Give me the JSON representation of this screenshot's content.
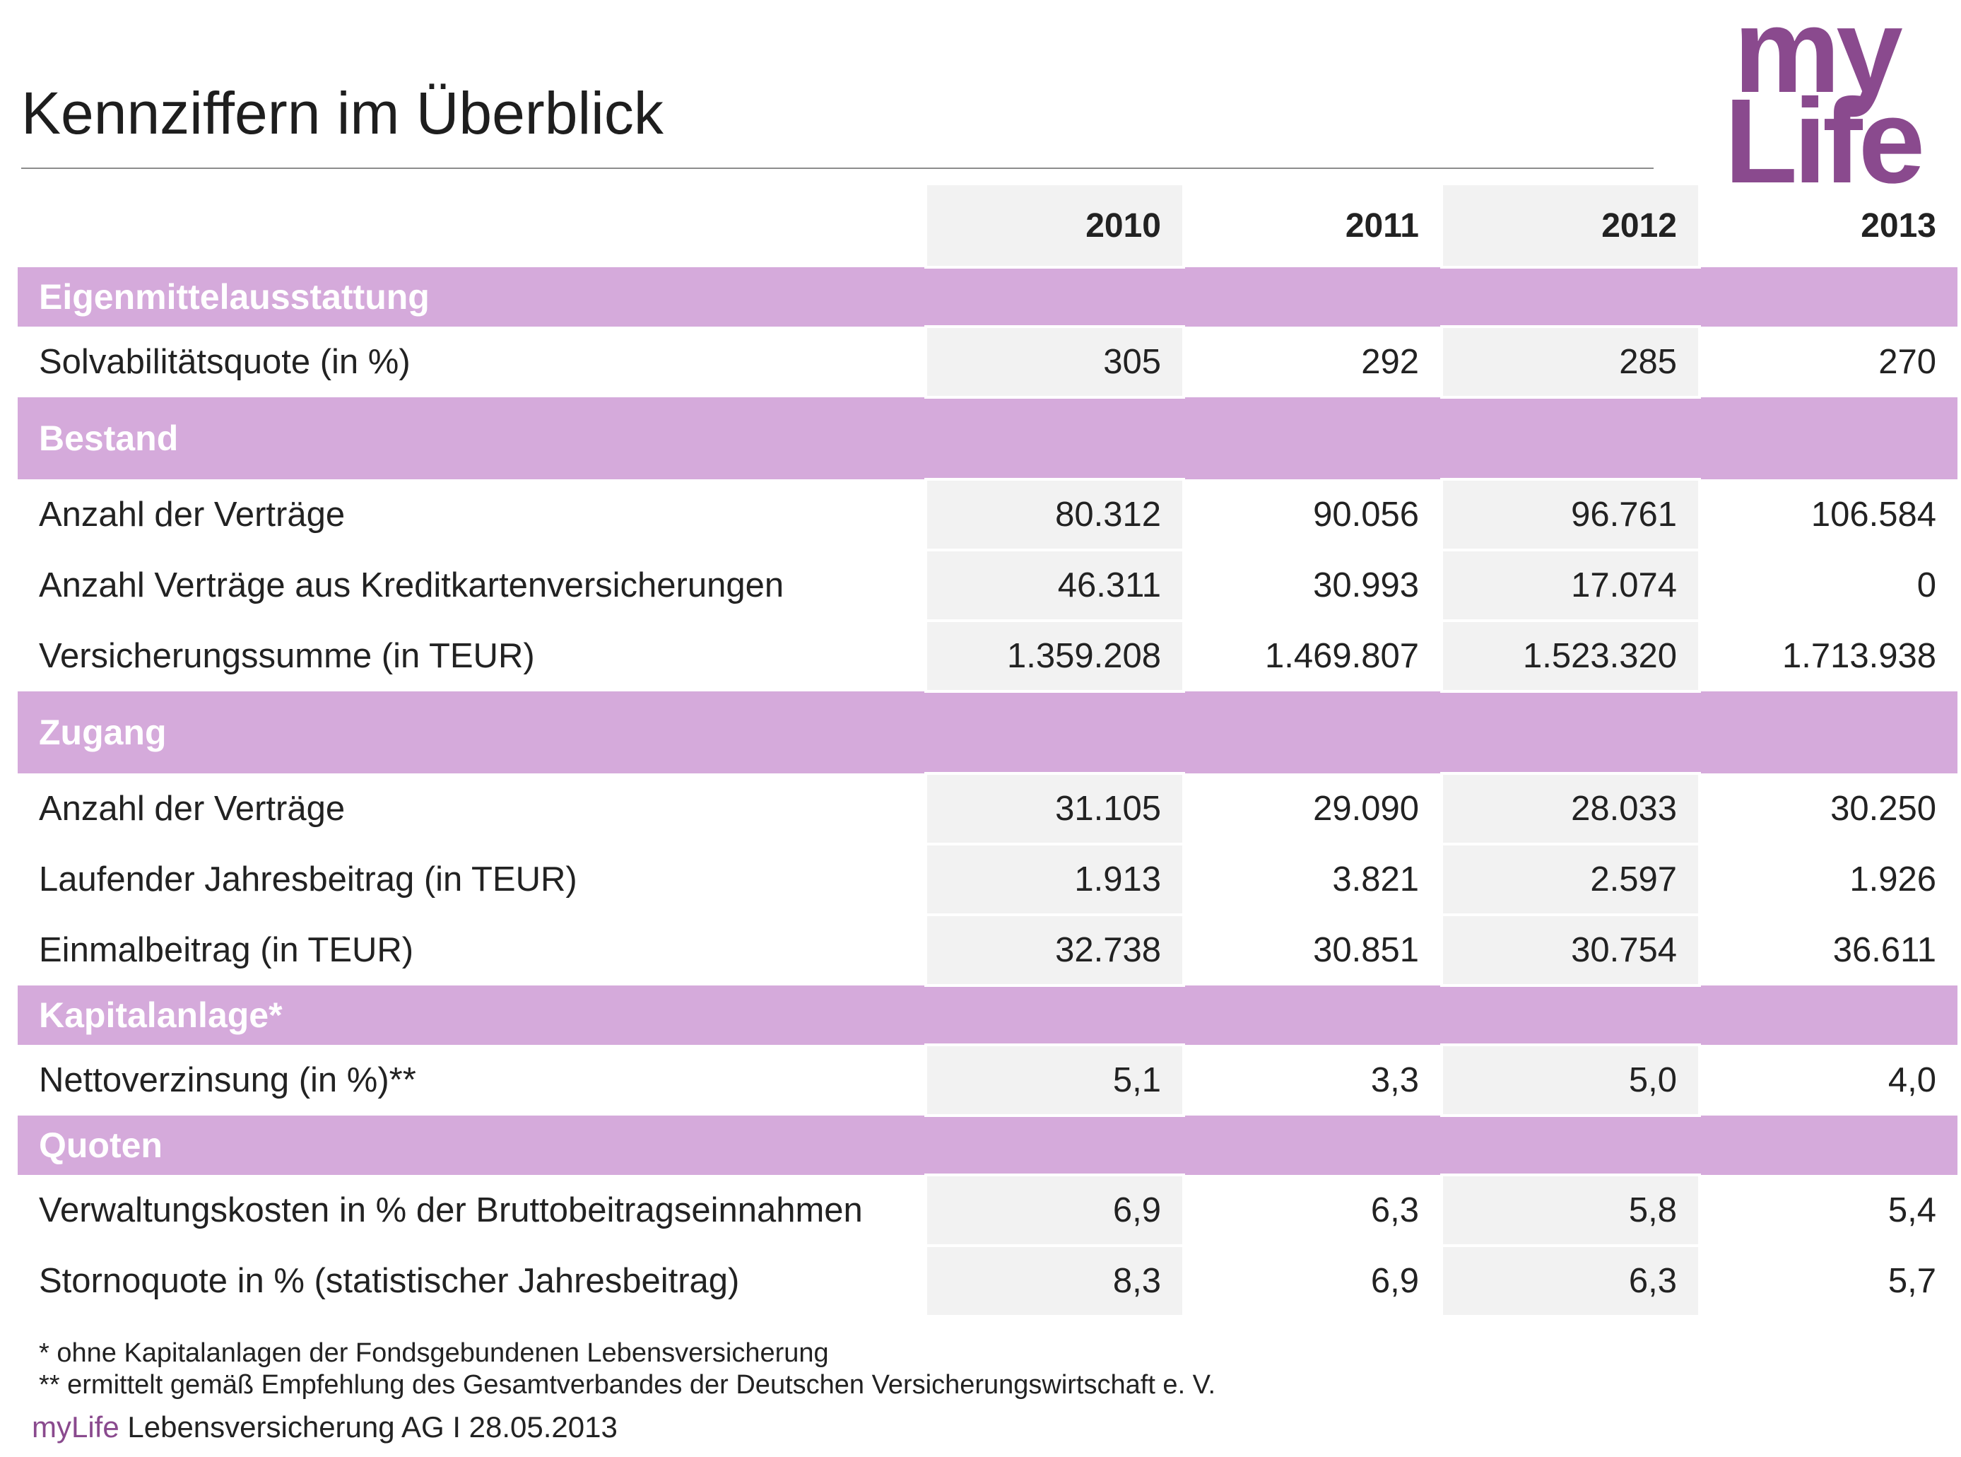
{
  "title": "Kennziffern im Überblick",
  "logo": {
    "line1": "my",
    "line2": "Life",
    "color": "#8a4a8e"
  },
  "colors": {
    "section_band": "#d5aadb",
    "shaded_cell": "#f2f2f2",
    "rule": "#8c8c8c"
  },
  "years": [
    "2010",
    "2011",
    "2012",
    "2013"
  ],
  "sections": [
    {
      "label": "Eigenmittelausstattung",
      "rows": [
        {
          "label": "Solvabilitätsquote (in %)",
          "values": [
            "305",
            "292",
            "285",
            "270"
          ]
        }
      ]
    },
    {
      "label": "Bestand",
      "rows": [
        {
          "label": "Anzahl der Verträge",
          "values": [
            "80.312",
            "90.056",
            "96.761",
            "106.584"
          ]
        },
        {
          "label": "Anzahl Verträge aus Kreditkartenversicherungen",
          "values": [
            "46.311",
            "30.993",
            "17.074",
            "0"
          ]
        },
        {
          "label": "Versicherungssumme (in TEUR)",
          "values": [
            "1.359.208",
            "1.469.807",
            "1.523.320",
            "1.713.938"
          ]
        }
      ]
    },
    {
      "label": "Zugang",
      "rows": [
        {
          "label": "Anzahl der Verträge",
          "values": [
            "31.105",
            "29.090",
            "28.033",
            "30.250"
          ]
        },
        {
          "label": "Laufender Jahresbeitrag (in TEUR)",
          "values": [
            "1.913",
            "3.821",
            "2.597",
            "1.926"
          ]
        },
        {
          "label": "Einmalbeitrag (in TEUR)",
          "values": [
            "32.738",
            "30.851",
            "30.754",
            "36.611"
          ]
        }
      ]
    },
    {
      "label": "Kapitalanlage*",
      "rows": [
        {
          "label": "Nettoverzinsung (in %)**",
          "values": [
            "5,1",
            "3,3",
            "5,0",
            "4,0"
          ]
        }
      ]
    },
    {
      "label": "Quoten",
      "rows": [
        {
          "label": "Verwaltungskosten in % der Bruttobeitragseinnahmen",
          "values": [
            "6,9",
            "6,3",
            "5,8",
            "5,4"
          ]
        },
        {
          "label": "Stornoquote in % (statistischer Jahresbeitrag)",
          "values": [
            "8,3",
            "6,9",
            "6,3",
            "5,7"
          ]
        }
      ]
    }
  ],
  "footnotes": [
    "* ohne Kapitalanlagen der Fondsgebundenen Lebensversicherung",
    "** ermittelt gemäß Empfehlung des Gesamtverbandes der Deutschen Versicherungswirtschaft e. V."
  ],
  "footer": {
    "brand": "myLife",
    "text": " Lebensversicherung AG I 28.05.2013"
  }
}
